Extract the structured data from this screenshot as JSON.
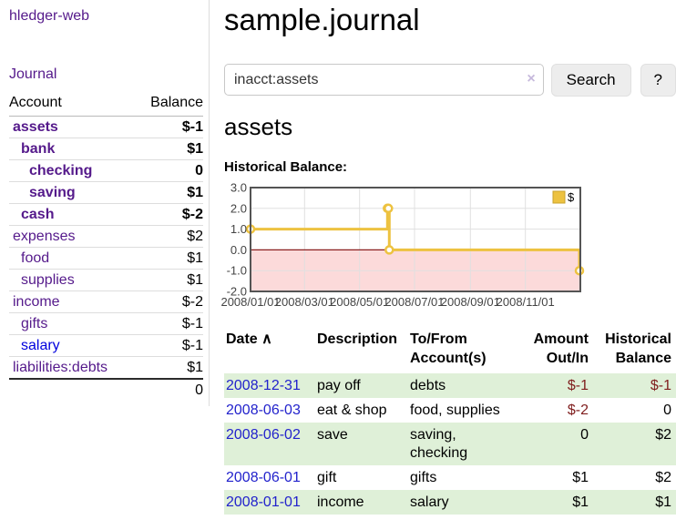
{
  "colors": {
    "link_purple": "#551a8b",
    "link_blue": "#0000dd",
    "date_link_blue": "#2222cc",
    "negative_strong": "#7f1d1d",
    "negative_light": "#bb7373",
    "row_stripe_green": "#dff0d8",
    "chart_gold": "#edc240"
  },
  "sidebar": {
    "brand": "hledger-web",
    "nav_journal": "Journal",
    "accounts_table": {
      "header_account": "Account",
      "header_balance": "Balance",
      "rows": [
        {
          "name": "assets",
          "balance": "$-1",
          "depth": 1,
          "bold": true
        },
        {
          "name": "bank",
          "balance": "$1",
          "depth": 2,
          "bold": true
        },
        {
          "name": "checking",
          "balance": "0",
          "depth": 3,
          "bold": true
        },
        {
          "name": "saving",
          "balance": "$1",
          "depth": 3,
          "bold": true
        },
        {
          "name": "cash",
          "balance": "$-2",
          "depth": 2,
          "bold": true
        },
        {
          "name": "expenses",
          "balance": "$2",
          "depth": 1,
          "bold": false
        },
        {
          "name": "food",
          "balance": "$1",
          "depth": 2,
          "bold": false
        },
        {
          "name": "supplies",
          "balance": "$1",
          "depth": 2,
          "bold": false
        },
        {
          "name": "income",
          "balance": "$-2",
          "depth": 1,
          "bold": false
        },
        {
          "name": "gifts",
          "balance": "$-1",
          "depth": 2,
          "bold": false
        },
        {
          "name": "salary",
          "balance": "$-1",
          "depth": 2,
          "bold": false,
          "color": "blue"
        },
        {
          "name": "liabilities:debts",
          "balance": "$1",
          "depth": 1,
          "bold": false
        }
      ],
      "total": "0"
    }
  },
  "header": {
    "title": "sample.journal"
  },
  "search": {
    "value": "inacct:assets",
    "clear_icon": "×",
    "button_label": "Search",
    "help_label": "?"
  },
  "account_page": {
    "title": "assets",
    "chart_label": "Historical Balance:"
  },
  "chart_data": {
    "type": "line",
    "title": "Historical Balance:",
    "x_start": "2008-01-01",
    "x_span_days": 366,
    "ylim": [
      -2,
      3
    ],
    "yticks": [
      {
        "v": 3,
        "label": "3.0"
      },
      {
        "v": 2,
        "label": "2.0"
      },
      {
        "v": 1,
        "label": "1.0"
      },
      {
        "v": 0,
        "label": "0.0"
      },
      {
        "v": -1,
        "label": "-1.0"
      },
      {
        "v": -2,
        "label": "-2.0"
      }
    ],
    "xticks": [
      {
        "date": "2008-01-01",
        "label": "2008/01/01"
      },
      {
        "date": "2008-03-01",
        "label": "2008/03/01"
      },
      {
        "date": "2008-05-01",
        "label": "2008/05/01"
      },
      {
        "date": "2008-07-01",
        "label": "2008/07/01"
      },
      {
        "date": "2008-09-01",
        "label": "2008/09/01"
      },
      {
        "date": "2008-11-01",
        "label": "2008/11/01"
      }
    ],
    "series": [
      {
        "name": "$",
        "color": "#edc240",
        "step": true,
        "points": [
          [
            "2008-01-01",
            1
          ],
          [
            "2008-06-01",
            2
          ],
          [
            "2008-06-02",
            2
          ],
          [
            "2008-06-03",
            0
          ],
          [
            "2008-12-31",
            -1
          ]
        ]
      }
    ],
    "legend": {
      "label": "$",
      "position": "top-right",
      "swatch_color": "#edc240"
    },
    "negative_fill": "#fcdada",
    "zero_line_color": "#8b1f1f",
    "grid": true
  },
  "register": {
    "headers": {
      "date": "Date",
      "description": "Description",
      "tofrom": "To/From\nAccount(s)",
      "amount": "Amount\nOut/In",
      "balance": "Historical\nBalance"
    },
    "sort_icon": "∧",
    "rows": [
      {
        "date": "2008-12-31",
        "description": "pay off",
        "tofrom": "debts",
        "amount": "$-1",
        "balance": "$-1"
      },
      {
        "date": "2008-06-03",
        "description": "eat & shop",
        "tofrom": "food, supplies",
        "amount": "$-2",
        "balance": "0"
      },
      {
        "date": "2008-06-02",
        "description": "save",
        "tofrom": "saving,\nchecking",
        "amount": "0",
        "balance": "$2"
      },
      {
        "date": "2008-06-01",
        "description": "gift",
        "tofrom": "gifts",
        "amount": "$1",
        "balance": "$2"
      },
      {
        "date": "2008-01-01",
        "description": "income",
        "tofrom": "salary",
        "amount": "$1",
        "balance": "$1"
      }
    ]
  }
}
